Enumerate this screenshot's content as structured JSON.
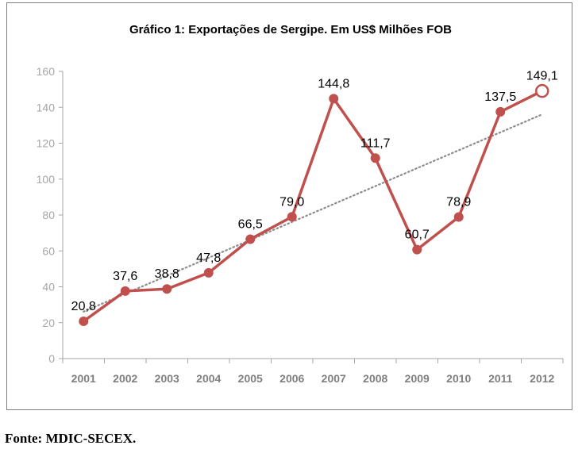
{
  "chart_data": {
    "type": "line",
    "title": "Gráfico 1: Exportações de Sergipe. Em US$ Milhões FOB",
    "categories": [
      "2001",
      "2002",
      "2003",
      "2004",
      "2005",
      "2006",
      "2007",
      "2008",
      "2009",
      "2010",
      "2011",
      "2012"
    ],
    "series": [
      {
        "values": [
          20.8,
          37.6,
          38.8,
          47.8,
          66.5,
          79.0,
          144.8,
          111.7,
          60.7,
          78.9,
          137.5,
          149.1
        ],
        "data_labels": [
          "20,8",
          "37,6",
          "38,8",
          "47,8",
          "66,5",
          "79,0",
          "144,8",
          "111,7",
          "60,7",
          "78,9",
          "137,5",
          "149,1"
        ],
        "color": "#c0504d",
        "last_point_marker": "hollow"
      }
    ],
    "trendline": {
      "type": "linear",
      "style": "dotted",
      "color": "#8c8c8c"
    },
    "y_ticks": [
      0,
      20,
      40,
      60,
      80,
      100,
      120,
      140,
      160
    ],
    "ylim": [
      0,
      160
    ],
    "grid": false,
    "legend": "none",
    "axis_color": "#a6a6a6",
    "tick_label_color": "#a6a6a6",
    "category_label_color": "#7f7f7f"
  },
  "source": "Fonte: MDIC-SECEX."
}
